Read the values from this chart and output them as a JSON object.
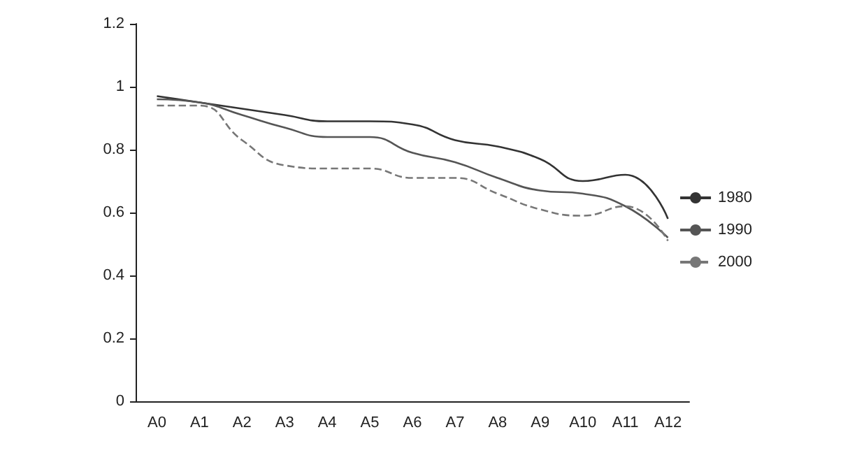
{
  "chart_data": {
    "type": "line",
    "categories": [
      "A0",
      "A1",
      "A2",
      "A3",
      "A4",
      "A5",
      "A6",
      "A7",
      "A8",
      "A9",
      "A10",
      "A11",
      "A12"
    ],
    "series": [
      {
        "name": "1980",
        "color": "#333333",
        "line_style": "solid",
        "values": [
          0.97,
          0.95,
          0.93,
          0.91,
          0.89,
          0.89,
          0.88,
          0.83,
          0.81,
          0.77,
          0.7,
          0.72,
          0.58
        ]
      },
      {
        "name": "1990",
        "color": "#555555",
        "line_style": "solid",
        "values": [
          0.96,
          0.95,
          0.91,
          0.87,
          0.84,
          0.84,
          0.79,
          0.76,
          0.71,
          0.67,
          0.66,
          0.62,
          0.52
        ]
      },
      {
        "name": "2000",
        "color": "#777777",
        "line_style": "dashed",
        "values": [
          0.94,
          0.94,
          0.83,
          0.75,
          0.74,
          0.74,
          0.71,
          0.71,
          0.66,
          0.61,
          0.59,
          0.62,
          0.51
        ]
      }
    ],
    "ylim": [
      0,
      1.2
    ],
    "yticks": [
      0,
      0.2,
      0.4,
      0.6,
      0.8,
      1,
      1.2
    ],
    "grid": false,
    "legend": "right",
    "marker": "none"
  }
}
